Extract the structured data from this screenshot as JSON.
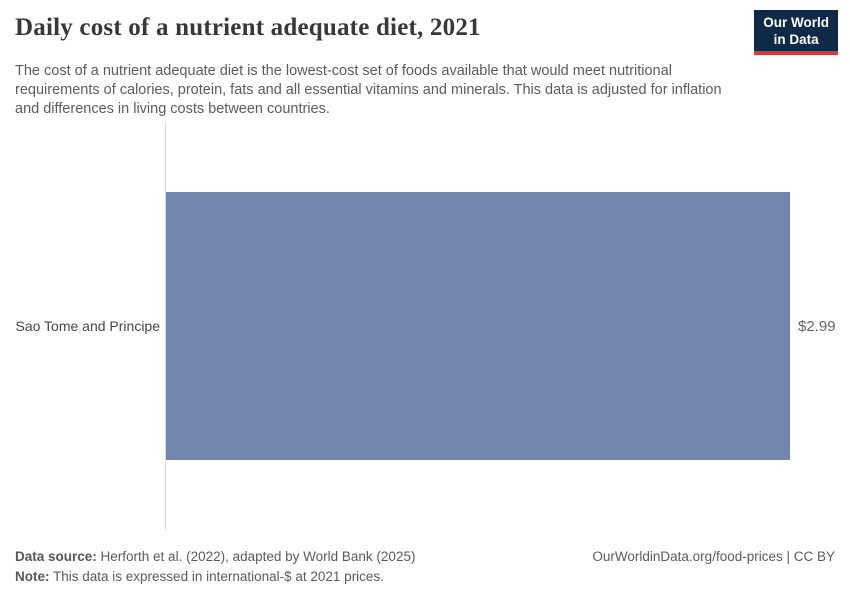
{
  "header": {
    "title": "Daily cost of a nutrient adequate diet, 2021",
    "subtitle": "The cost of a nutrient adequate diet is the lowest-cost set of foods available that would meet nutritional requirements of calories, protein, fats and all essential vitamins and minerals. This data is adjusted for inflation and differences in living costs between countries.",
    "logo": {
      "line1": "Our World",
      "line2": "in Data",
      "bg_color": "#0e2a47",
      "accent_color": "#d73a35"
    }
  },
  "chart_data": {
    "type": "bar",
    "orientation": "horizontal",
    "title": "Daily cost of a nutrient adequate diet, 2021",
    "categories": [
      "Sao Tome and Principe"
    ],
    "values": [
      2.99
    ],
    "value_labels": [
      "$2.99"
    ],
    "xlabel": "",
    "ylabel": "",
    "xlim": [
      0,
      2.99
    ],
    "grid": false,
    "legend": false,
    "bar_color": "#7286ae",
    "unit": "international-$ per day, 2021 prices"
  },
  "footer": {
    "source_label": "Data source:",
    "source_text": " Herforth et al. (2022), adapted by World Bank (2025)",
    "note_label": "Note:",
    "note_text": " This data is expressed in international-$ at 2021 prices.",
    "right_text": "OurWorldinData.org/food-prices | CC BY"
  }
}
